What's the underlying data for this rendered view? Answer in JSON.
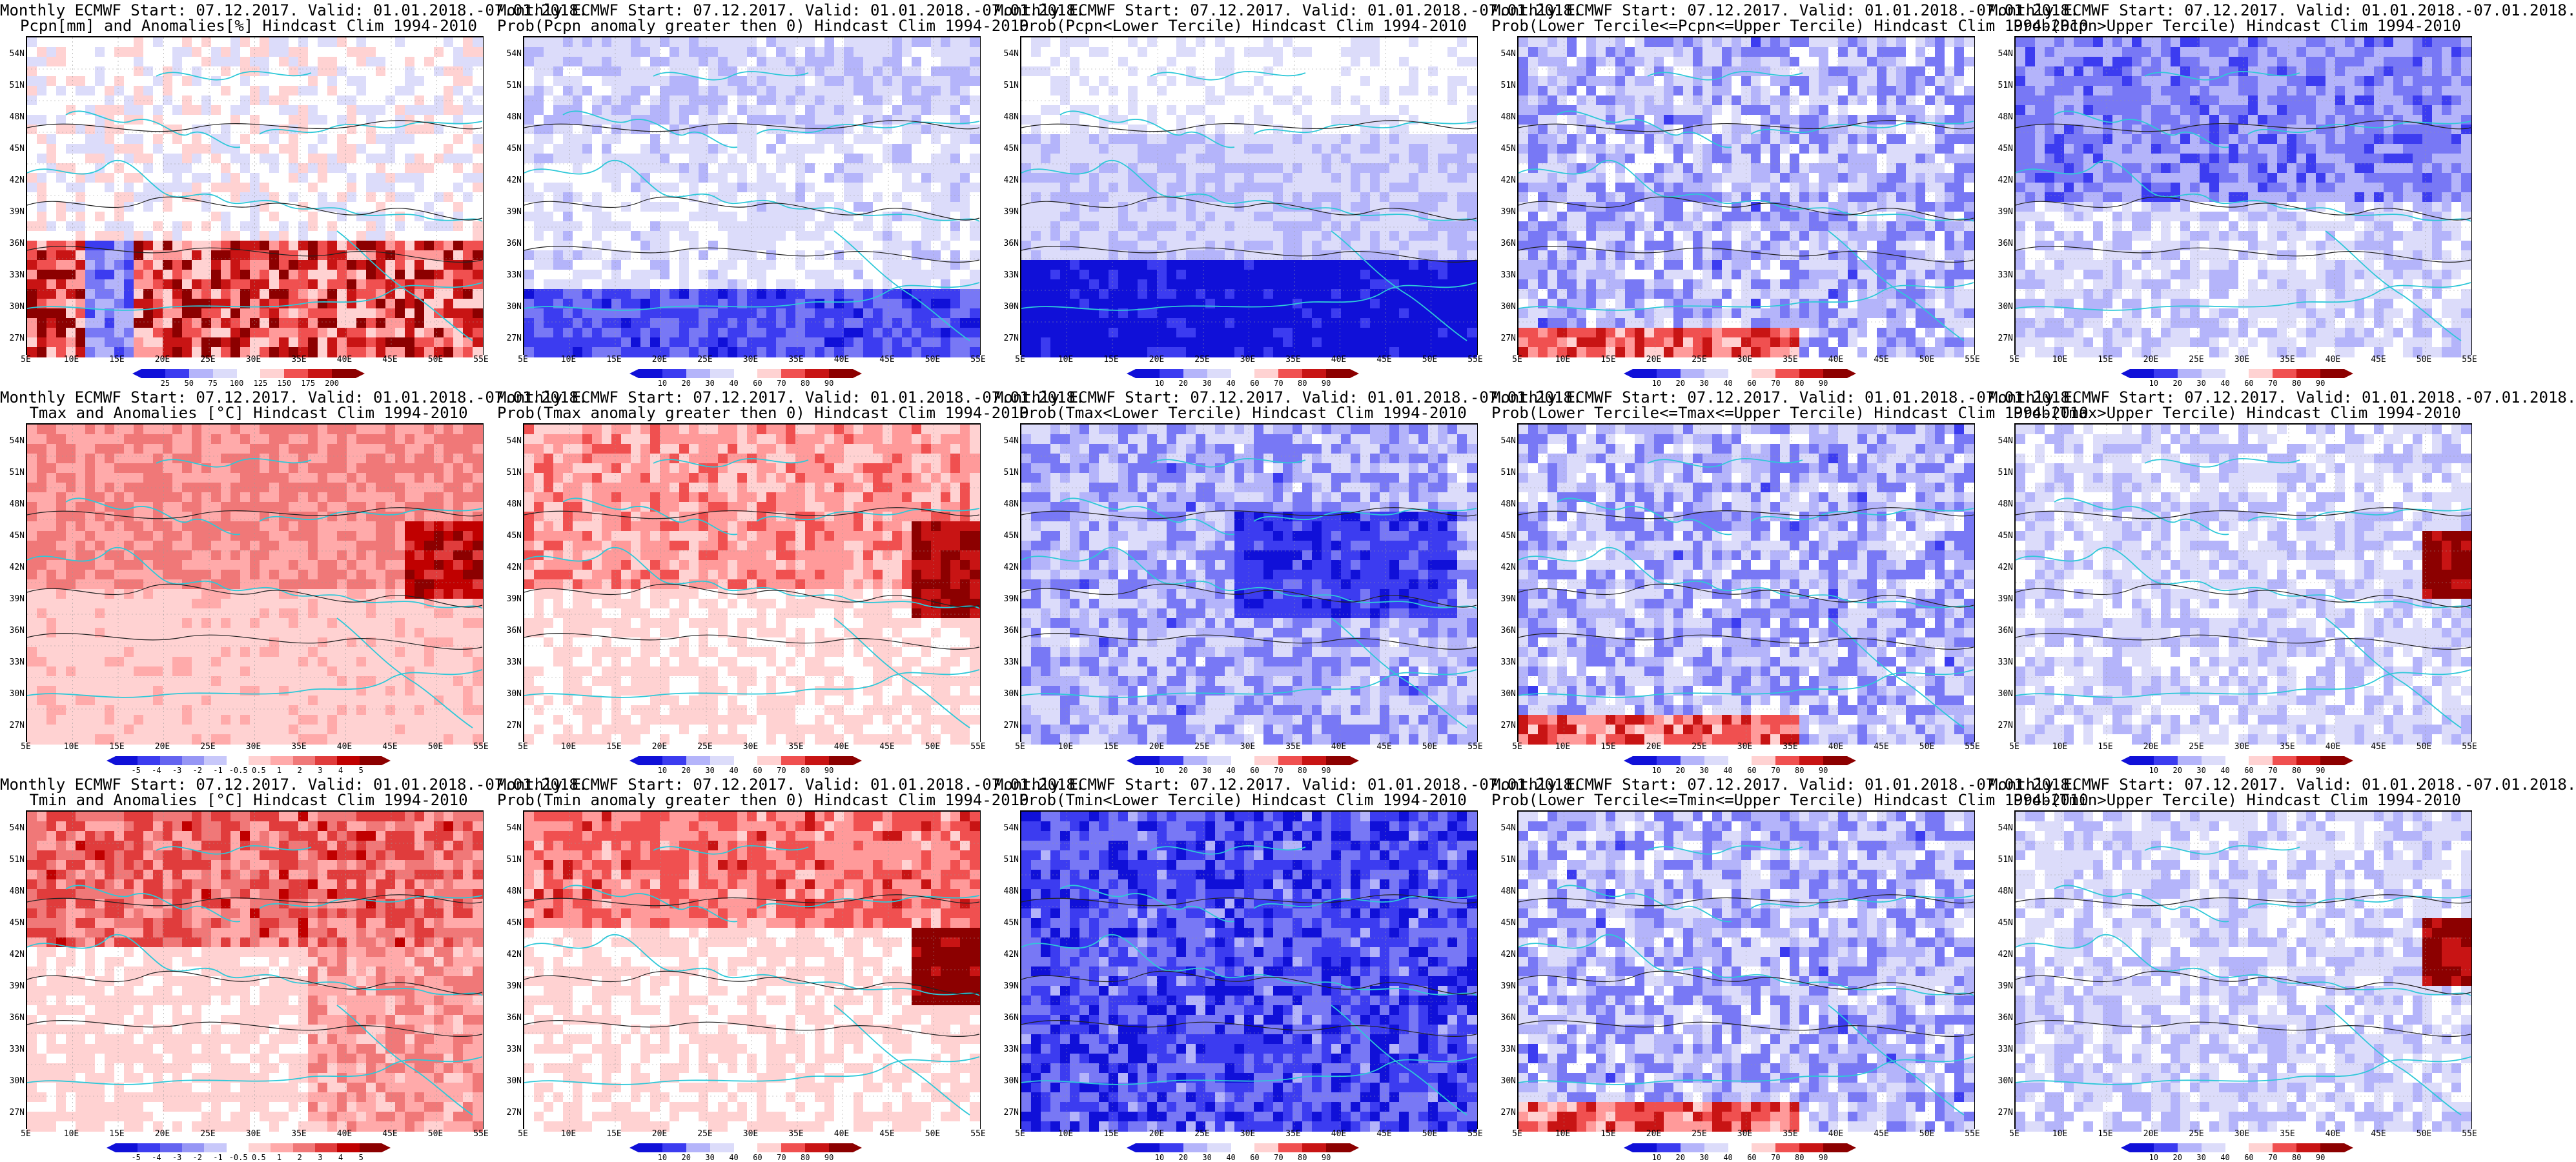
{
  "panels": [
    {
      "title1": "Monthly ECMWF Start: 07.12.2017. Valid: 01.01.2018.-07.01.2018.",
      "title2": "Pcpn[mm] and Anomalies[%] Hindcast Clim 1994-2010",
      "scale": "anom_pcp",
      "cbar": [
        "25",
        "50",
        "75",
        "100",
        "125",
        "150",
        "175",
        "200"
      ],
      "hot": "south_red"
    },
    {
      "title1": "Monthly ECMWF Start: 07.12.2017. Valid: 01.01.2018.-07.01.2018.",
      "title2": "Prob(Pcpn anomaly greater then 0) Hindcast Clim 1994-2010",
      "scale": "prob",
      "cbar": [
        "10",
        "20",
        "30",
        "40",
        "60",
        "70",
        "80",
        "90"
      ],
      "hot": "south_blue"
    },
    {
      "title1": "Monthly ECMWF Start: 07.12.2017. Valid: 01.01.2018.-07.01.2018.",
      "title2": "Prob(Pcpn<Lower Tercile) Hindcast Clim 1994-2010",
      "scale": "prob",
      "cbar": [
        "10",
        "20",
        "30",
        "40",
        "60",
        "70",
        "80",
        "90"
      ],
      "hot": "south_darkblue"
    },
    {
      "title1": "Monthly ECMWF Start: 07.12.2017. Valid: 01.01.2018.-07.01.2018.",
      "title2": "Prob(Lower Tercile<=Pcpn<=Upper Tercile) Hindcast Clim 1994-2010",
      "scale": "prob",
      "cbar": [
        "10",
        "20",
        "30",
        "40",
        "60",
        "70",
        "80",
        "90"
      ],
      "hot": "mid_blue"
    },
    {
      "title1": "Monthly ECMWF Start: 07.12.2017. Valid: 01.01.2018.-07.01.2018.",
      "title2": "Prob(Pcpn>Upper Tercile) Hindcast Clim 1994-2010",
      "scale": "prob",
      "cbar": [
        "10",
        "20",
        "30",
        "40",
        "60",
        "70",
        "80",
        "90"
      ],
      "hot": "north_blue"
    },
    {
      "title1": "Monthly ECMWF Start: 07.12.2017. Valid: 01.01.2018.-07.01.2018.",
      "title2": "Tmax and Anomalies [°C] Hindcast Clim 1994-2010",
      "scale": "anom_t",
      "cbar": [
        "-5",
        "-4",
        "-3",
        "-2",
        "-1",
        "-0.5",
        "0.5",
        "1",
        "2",
        "3",
        "4",
        "5"
      ],
      "hot": "warm_light"
    },
    {
      "title1": "Monthly ECMWF Start: 07.12.2017. Valid: 01.01.2018.-07.01.2018.",
      "title2": "Prob(Tmax anomaly greater then 0) Hindcast Clim 1994-2010",
      "scale": "prob",
      "cbar": [
        "10",
        "20",
        "30",
        "40",
        "60",
        "70",
        "80",
        "90"
      ],
      "hot": "warm_east"
    },
    {
      "title1": "Monthly ECMWF Start: 07.12.2017. Valid: 01.01.2018.-07.01.2018.",
      "title2": "Prob(Tmax<Lower Tercile) Hindcast Clim 1994-2010",
      "scale": "prob",
      "cbar": [
        "10",
        "20",
        "30",
        "40",
        "60",
        "70",
        "80",
        "90"
      ],
      "hot": "cold_mid"
    },
    {
      "title1": "Monthly ECMWF Start: 07.12.2017. Valid: 01.01.2018.-07.01.2018.",
      "title2": "Prob(Lower Tercile<=Tmax<=Upper Tercile) Hindcast Clim 1994-2010",
      "scale": "prob",
      "cbar": [
        "10",
        "20",
        "30",
        "40",
        "60",
        "70",
        "80",
        "90"
      ],
      "hot": "mid_blue"
    },
    {
      "title1": "Monthly ECMWF Start: 07.12.2017. Valid: 01.01.2018.-07.01.2018.",
      "title2": "Prob(Tmax>Upper Tercile) Hindcast Clim 1994-2010",
      "scale": "prob",
      "cbar": [
        "10",
        "20",
        "30",
        "40",
        "60",
        "70",
        "80",
        "90"
      ],
      "hot": "east_red"
    },
    {
      "title1": "Monthly ECMWF Start: 07.12.2017. Valid: 01.01.2018.-07.01.2018.",
      "title2": "Tmin and Anomalies [°C] Hindcast Clim 1994-2010",
      "scale": "anom_t",
      "cbar": [
        "-5",
        "-4",
        "-3",
        "-2",
        "-1",
        "-0.5",
        "0.5",
        "1",
        "2",
        "3",
        "4",
        "5"
      ],
      "hot": "warm_north"
    },
    {
      "title1": "Monthly ECMWF Start: 07.12.2017. Valid: 01.01.2018.-07.01.2018.",
      "title2": "Prob(Tmin anomaly greater then 0) Hindcast Clim 1994-2010",
      "scale": "prob",
      "cbar": [
        "10",
        "20",
        "30",
        "40",
        "60",
        "70",
        "80",
        "90"
      ],
      "hot": "warm_north_east"
    },
    {
      "title1": "Monthly ECMWF Start: 07.12.2017. Valid: 01.01.2018.-07.01.2018.",
      "title2": "Prob(Tmin<Lower Tercile) Hindcast Clim 1994-2010",
      "scale": "prob",
      "cbar": [
        "10",
        "20",
        "30",
        "40",
        "60",
        "70",
        "80",
        "90"
      ],
      "hot": "cold_all"
    },
    {
      "title1": "Monthly ECMWF Start: 07.12.2017. Valid: 01.01.2018.-07.01.2018.",
      "title2": "Prob(Lower Tercile<=Tmin<=Upper Tercile) Hindcast Clim 1994-2010",
      "scale": "prob",
      "cbar": [
        "10",
        "20",
        "30",
        "40",
        "60",
        "70",
        "80",
        "90"
      ],
      "hot": "mid_blue"
    },
    {
      "title1": "Monthly ECMWF Start: 07.12.2017. Valid: 01.01.2018.-07.01.2018.",
      "title2": "Prob(Tmin>Upper Tercile) Hindcast Clim 1994-2010",
      "scale": "prob",
      "cbar": [
        "10",
        "20",
        "30",
        "40",
        "60",
        "70",
        "80",
        "90"
      ],
      "hot": "east_red"
    }
  ],
  "lat_labels": [
    "54N",
    "51N",
    "48N",
    "45N",
    "42N",
    "39N",
    "36N",
    "33N",
    "30N",
    "27N"
  ],
  "lon_labels": [
    "5E",
    "10E",
    "15E",
    "20E",
    "25E",
    "30E",
    "35E",
    "40E",
    "45E",
    "50E",
    "55E"
  ],
  "colors": {
    "prob_scale": [
      "#1010d8",
      "#3c3cf0",
      "#7878f5",
      "#b4b4fa",
      "#dcdcfa",
      "#ffffff",
      "#ffd2d2",
      "#ff9a9a",
      "#f05050",
      "#c81414",
      "#8c0000"
    ],
    "anom_t_scale": [
      "#1010d8",
      "#3c3cf0",
      "#6464f0",
      "#9696f5",
      "#c8c8fa",
      "#ffffff",
      "#ffd2d2",
      "#ffaaaa",
      "#f07878",
      "#e03c3c",
      "#c00000",
      "#8c0000"
    ],
    "coast": "#2ec8d8"
  }
}
